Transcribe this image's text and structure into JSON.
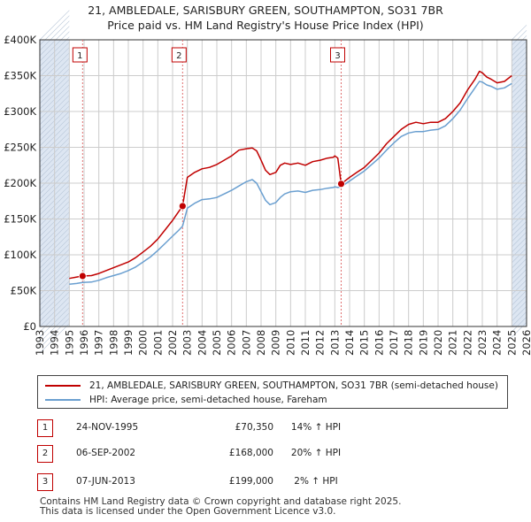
{
  "title": {
    "line1": "21, AMBLEDALE, SARISBURY GREEN, SOUTHAMPTON, SO31 7BR",
    "line2": "Price paid vs. HM Land Registry's House Price Index (HPI)"
  },
  "colors": {
    "property": "#c00000",
    "hpi": "#6a9fd0",
    "shade": "#dde6f2",
    "grid": "#cccccc",
    "marker_line": "#e07070"
  },
  "chart_data": {
    "type": "line",
    "xlabel": "",
    "ylabel": "",
    "xlim": [
      1993,
      2026
    ],
    "ylim": [
      0,
      400000
    ],
    "grid": true,
    "legend_position": "below",
    "x_ticks": [
      "1993",
      "1994",
      "1995",
      "1996",
      "1997",
      "1998",
      "1999",
      "2000",
      "2001",
      "2002",
      "2003",
      "2004",
      "2005",
      "2006",
      "2007",
      "2008",
      "2009",
      "2010",
      "2011",
      "2012",
      "2013",
      "2014",
      "2015",
      "2016",
      "2017",
      "2018",
      "2019",
      "2020",
      "2021",
      "2022",
      "2023",
      "2024",
      "2025",
      "2026"
    ],
    "y_ticks": [
      {
        "value": 0,
        "label": "£0"
      },
      {
        "value": 50000,
        "label": "£50K"
      },
      {
        "value": 100000,
        "label": "£100K"
      },
      {
        "value": 150000,
        "label": "£150K"
      },
      {
        "value": 200000,
        "label": "£200K"
      },
      {
        "value": 250000,
        "label": "£250K"
      },
      {
        "value": 300000,
        "label": "£300K"
      },
      {
        "value": 350000,
        "label": "£350K"
      },
      {
        "value": 400000,
        "label": "£400K"
      }
    ],
    "shaded_ranges": [
      [
        1993,
        1995.0
      ],
      [
        2025.0,
        2026
      ]
    ],
    "series": [
      {
        "name": "21, AMBLEDALE, SARISBURY GREEN, SOUTHAMPTON, SO31 7BR (semi-detached house)",
        "color": "#c00000",
        "x": [
          1995.0,
          1995.5,
          1995.9,
          1996.5,
          1997.0,
          1997.5,
          1998.0,
          1998.5,
          1999.0,
          1999.5,
          2000.0,
          2000.5,
          2001.0,
          2001.5,
          2002.0,
          2002.4,
          2002.68,
          2003.0,
          2003.5,
          2004.0,
          2004.5,
          2005.0,
          2005.5,
          2006.0,
          2006.5,
          2007.0,
          2007.4,
          2007.7,
          2008.0,
          2008.3,
          2008.6,
          2009.0,
          2009.3,
          2009.6,
          2010.0,
          2010.5,
          2011.0,
          2011.5,
          2012.0,
          2012.5,
          2012.9,
          2013.0,
          2013.2,
          2013.43,
          2014.0,
          2014.5,
          2015.0,
          2015.5,
          2016.0,
          2016.5,
          2017.0,
          2017.5,
          2018.0,
          2018.5,
          2019.0,
          2019.5,
          2020.0,
          2020.5,
          2021.0,
          2021.5,
          2022.0,
          2022.5,
          2022.8,
          2023.0,
          2023.3,
          2023.6,
          2024.0,
          2024.5,
          2025.0
        ],
        "values": [
          67000,
          69000,
          70350,
          71000,
          74000,
          78000,
          82000,
          86000,
          90000,
          96000,
          104000,
          112000,
          122000,
          135000,
          148000,
          160000,
          168000,
          208000,
          215000,
          220000,
          222000,
          226000,
          232000,
          238000,
          246000,
          248000,
          249000,
          245000,
          232000,
          218000,
          212000,
          215000,
          225000,
          228000,
          226000,
          228000,
          225000,
          230000,
          232000,
          235000,
          236000,
          238000,
          235000,
          199000,
          208000,
          215000,
          222000,
          232000,
          242000,
          255000,
          265000,
          275000,
          282000,
          285000,
          283000,
          285000,
          285000,
          290000,
          300000,
          312000,
          330000,
          345000,
          356000,
          354000,
          348000,
          345000,
          340000,
          342000,
          350000
        ]
      },
      {
        "name": "HPI: Average price, semi-detached house, Fareham",
        "color": "#6a9fd0",
        "x": [
          1995.0,
          1995.5,
          1995.9,
          1996.5,
          1997.0,
          1997.5,
          1998.0,
          1998.5,
          1999.0,
          1999.5,
          2000.0,
          2000.5,
          2001.0,
          2001.5,
          2002.0,
          2002.4,
          2002.68,
          2003.0,
          2003.5,
          2004.0,
          2004.5,
          2005.0,
          2005.5,
          2006.0,
          2006.5,
          2007.0,
          2007.4,
          2007.7,
          2008.0,
          2008.3,
          2008.6,
          2009.0,
          2009.3,
          2009.6,
          2010.0,
          2010.5,
          2011.0,
          2011.5,
          2012.0,
          2012.5,
          2012.9,
          2013.0,
          2013.2,
          2013.43,
          2014.0,
          2014.5,
          2015.0,
          2015.5,
          2016.0,
          2016.5,
          2017.0,
          2017.5,
          2018.0,
          2018.5,
          2019.0,
          2019.5,
          2020.0,
          2020.5,
          2021.0,
          2021.5,
          2022.0,
          2022.5,
          2022.8,
          2023.0,
          2023.3,
          2023.6,
          2024.0,
          2024.5,
          2025.0
        ],
        "values": [
          59000,
          60000,
          61500,
          62000,
          64500,
          68000,
          71000,
          74000,
          78000,
          83000,
          90000,
          97000,
          106000,
          116000,
          126000,
          134000,
          140000,
          165000,
          172000,
          177000,
          178000,
          180000,
          185000,
          190000,
          196000,
          202000,
          205000,
          200000,
          188000,
          176000,
          170000,
          173000,
          180000,
          185000,
          188000,
          189000,
          187000,
          190000,
          191000,
          193000,
          194000,
          195000,
          194000,
          195000,
          203000,
          210000,
          217000,
          226000,
          235000,
          246000,
          256000,
          265000,
          270000,
          272000,
          272000,
          274000,
          275000,
          280000,
          290000,
          302000,
          318000,
          333000,
          342000,
          341000,
          337000,
          335000,
          331000,
          333000,
          339000
        ]
      }
    ],
    "markers": [
      {
        "label": "1",
        "x": 1995.9,
        "value": 70350
      },
      {
        "label": "2",
        "x": 2002.68,
        "value": 168000
      },
      {
        "label": "3",
        "x": 2013.43,
        "value": 199000
      }
    ]
  },
  "legend": {
    "property_label": "21, AMBLEDALE, SARISBURY GREEN, SOUTHAMPTON, SO31 7BR (semi-detached house)",
    "hpi_label": "HPI: Average price, semi-detached house, Fareham"
  },
  "transactions": [
    {
      "num": "1",
      "date": "24-NOV-1995",
      "price": "£70,350",
      "hpi": "14% ↑ HPI"
    },
    {
      "num": "2",
      "date": "06-SEP-2002",
      "price": "£168,000",
      "hpi": "20% ↑ HPI"
    },
    {
      "num": "3",
      "date": "07-JUN-2013",
      "price": "£199,000",
      "hpi": "2% ↑ HPI"
    }
  ],
  "footer": {
    "line1": "Contains HM Land Registry data © Crown copyright and database right 2025.",
    "line2": "This data is licensed under the Open Government Licence v3.0."
  }
}
